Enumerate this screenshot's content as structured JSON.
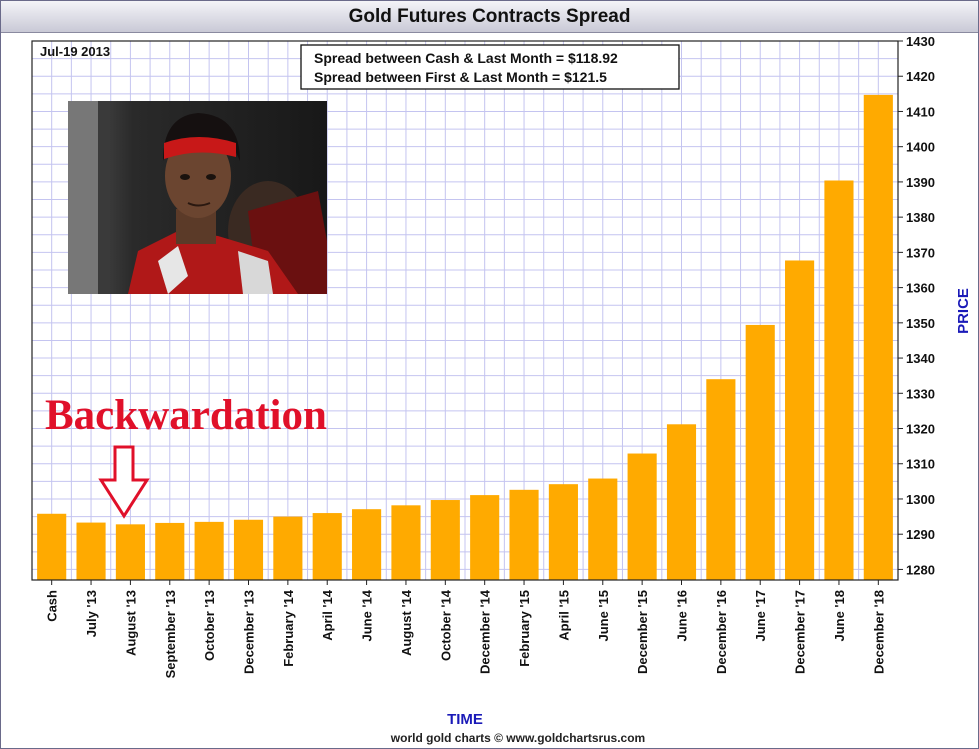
{
  "chart_data": {
    "type": "bar",
    "title": "Gold Futures Contracts Spread",
    "date_label": "Jul-19  2013",
    "annotation_lines": [
      "Spread between Cash & Last Month = $118.92",
      "Spread between First & Last Month = $121.5"
    ],
    "callout": "Backwardation",
    "xlabel": "TIME",
    "ylabel": "PRICE",
    "credit": "world gold charts © www.goldchartsrus.com",
    "categories": [
      "Cash",
      "July '13",
      "August '13",
      "September '13",
      "October '13",
      "December '13",
      "February '14",
      "April '14",
      "June '14",
      "August '14",
      "October '14",
      "December '14",
      "February '15",
      "April '15",
      "June '15",
      "December '15",
      "June '16",
      "December '16",
      "June '17",
      "December '17",
      "June '18",
      "December '18"
    ],
    "values": [
      1295.8,
      1293.3,
      1292.8,
      1293.2,
      1293.5,
      1294.1,
      1295.0,
      1296.0,
      1297.1,
      1298.2,
      1299.7,
      1301.1,
      1302.6,
      1304.2,
      1305.8,
      1312.9,
      1321.2,
      1334.0,
      1349.4,
      1367.7,
      1390.4,
      1414.7
    ],
    "yticks": [
      1280,
      1290,
      1300,
      1310,
      1320,
      1330,
      1340,
      1350,
      1360,
      1370,
      1380,
      1390,
      1400,
      1410,
      1420,
      1430
    ],
    "ylim": [
      1277,
      1430
    ],
    "grid": true,
    "colors": {
      "bar": "#ffaa00",
      "grid": "#c4c4f0",
      "axis_title": "#1a1ab8",
      "callout": "#e0102a"
    }
  }
}
